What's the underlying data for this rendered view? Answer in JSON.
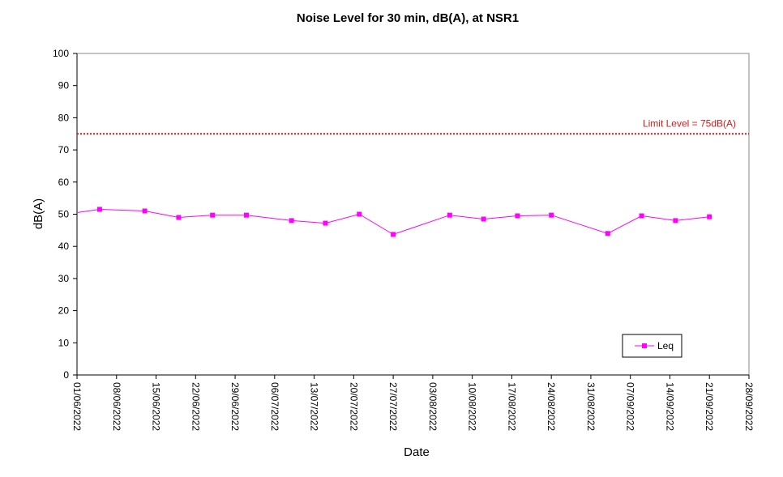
{
  "chart_data": {
    "type": "line",
    "title": "Noise Level for 30 min, dB(A), at NSR1",
    "xlabel": "Date",
    "ylabel": "dB(A)",
    "ylim": [
      0,
      100
    ],
    "yticks": [
      "0",
      "10",
      "20",
      "30",
      "40",
      "50",
      "60",
      "70",
      "80",
      "90",
      "100"
    ],
    "xlim": [
      "2022-06-01",
      "2022-09-28"
    ],
    "xticks": [
      "01/06/2022",
      "08/06/2022",
      "15/06/2022",
      "22/06/2022",
      "29/06/2022",
      "06/07/2022",
      "13/07/2022",
      "20/07/2022",
      "27/07/2022",
      "03/08/2022",
      "10/08/2022",
      "17/08/2022",
      "24/08/2022",
      "31/08/2022",
      "07/09/2022",
      "14/09/2022",
      "21/09/2022",
      "28/09/2022"
    ],
    "series": [
      {
        "name": "Leq",
        "color": "#ff00ff",
        "marker": "square",
        "x": [
          "2022-06-01",
          "2022-06-05",
          "2022-06-13",
          "2022-06-19",
          "2022-06-25",
          "2022-07-01",
          "2022-07-09",
          "2022-07-15",
          "2022-07-21",
          "2022-07-27",
          "2022-08-06",
          "2022-08-12",
          "2022-08-18",
          "2022-08-24",
          "2022-09-03",
          "2022-09-09",
          "2022-09-15",
          "2022-09-21"
        ],
        "y": [
          50.5,
          51.5,
          51.0,
          49.0,
          49.7,
          49.7,
          48.0,
          47.2,
          50.0,
          43.7,
          49.7,
          48.5,
          49.5,
          49.7,
          44.0,
          49.5,
          48.0,
          49.2
        ],
        "first_point_marker": false
      }
    ],
    "reference_line": {
      "label": "Limit Level  = 75dB(A)",
      "value": 75,
      "color": "#d01c1c",
      "style": "dotted"
    },
    "legend": {
      "placement": "bottom-right",
      "entries": [
        "Leq"
      ]
    },
    "grid": false
  }
}
